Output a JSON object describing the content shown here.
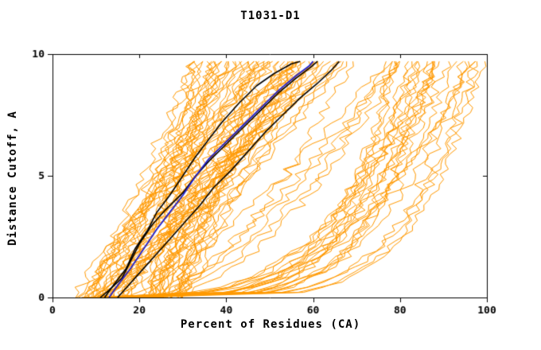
{
  "chart_data": {
    "type": "line",
    "title": "T1031-D1",
    "xlabel": "Percent of Residues (CA)",
    "ylabel": "Distance Cutoff, A",
    "xlim": [
      0,
      100
    ],
    "ylim": [
      0,
      10
    ],
    "xticks": [
      0,
      20,
      40,
      60,
      80,
      100
    ],
    "yticks": [
      0,
      5,
      10
    ],
    "grid": false,
    "legend": "none",
    "axis_color": "#000000",
    "background_color": "#FFFFFF",
    "ensemble": {
      "description": "many unlabeled model curves",
      "color": "#FF9900",
      "line_width": 1,
      "seed": 1337,
      "y_max": 9.7,
      "groups": [
        {
          "name": "good-models",
          "count": 62,
          "x_start": [
            5,
            30
          ],
          "x_end": [
            32,
            68
          ],
          "shape": [
            0.8,
            1.35
          ],
          "jitter": 1.5
        },
        {
          "name": "mid-models",
          "count": 6,
          "x_start": [
            10,
            28
          ],
          "x_end": [
            68,
            80
          ],
          "shape": [
            0.55,
            0.9
          ],
          "jitter": 1.5
        },
        {
          "name": "poor-models",
          "count": 24,
          "x_start": [
            6,
            22
          ],
          "x_end": [
            78,
            100
          ],
          "shape": [
            0.15,
            0.35
          ],
          "jitter": 1.4
        }
      ]
    },
    "highlights": [
      {
        "name": "black-model-1",
        "color": "#000000",
        "width": 1.6,
        "points": [
          [
            11,
            0
          ],
          [
            13,
            0.3
          ],
          [
            16,
            0.8
          ],
          [
            18,
            1.5
          ],
          [
            20,
            2.2
          ],
          [
            23,
            3.0
          ],
          [
            26,
            3.6
          ],
          [
            30,
            4.3
          ],
          [
            33,
            5.0
          ],
          [
            36,
            5.6
          ],
          [
            40,
            6.3
          ],
          [
            44,
            7.0
          ],
          [
            48,
            7.7
          ],
          [
            52,
            8.4
          ],
          [
            56,
            9.0
          ],
          [
            59,
            9.4
          ],
          [
            61,
            9.7
          ]
        ]
      },
      {
        "name": "black-model-2",
        "color": "#000000",
        "width": 1.6,
        "points": [
          [
            15,
            0
          ],
          [
            17,
            0.4
          ],
          [
            20,
            1.0
          ],
          [
            24,
            1.8
          ],
          [
            28,
            2.6
          ],
          [
            31,
            3.2
          ],
          [
            34,
            3.8
          ],
          [
            37,
            4.5
          ],
          [
            41,
            5.2
          ],
          [
            45,
            6.0
          ],
          [
            49,
            6.8
          ],
          [
            53,
            7.5
          ],
          [
            57,
            8.2
          ],
          [
            61,
            8.8
          ],
          [
            64,
            9.3
          ],
          [
            66,
            9.7
          ]
        ]
      },
      {
        "name": "black-model-3",
        "color": "#000000",
        "width": 1.6,
        "points": [
          [
            12,
            0
          ],
          [
            14,
            0.5
          ],
          [
            17,
            1.2
          ],
          [
            19,
            2.0
          ],
          [
            22,
            2.8
          ],
          [
            24,
            3.5
          ],
          [
            27,
            4.2
          ],
          [
            30,
            5.0
          ],
          [
            33,
            5.8
          ],
          [
            36,
            6.5
          ],
          [
            39,
            7.2
          ],
          [
            43,
            8.0
          ],
          [
            47,
            8.7
          ],
          [
            51,
            9.2
          ],
          [
            55,
            9.6
          ],
          [
            57,
            9.7
          ]
        ]
      },
      {
        "name": "blue-model",
        "color": "#2020CC",
        "width": 1.8,
        "points": [
          [
            13,
            0
          ],
          [
            15,
            0.5
          ],
          [
            18,
            1.2
          ],
          [
            21,
            2.0
          ],
          [
            24,
            2.8
          ],
          [
            27,
            3.5
          ],
          [
            30,
            4.2
          ],
          [
            33,
            5.0
          ],
          [
            36,
            5.7
          ],
          [
            40,
            6.4
          ],
          [
            44,
            7.1
          ],
          [
            48,
            7.8
          ],
          [
            52,
            8.5
          ],
          [
            56,
            9.1
          ],
          [
            59,
            9.5
          ],
          [
            60,
            9.7
          ]
        ]
      }
    ]
  }
}
